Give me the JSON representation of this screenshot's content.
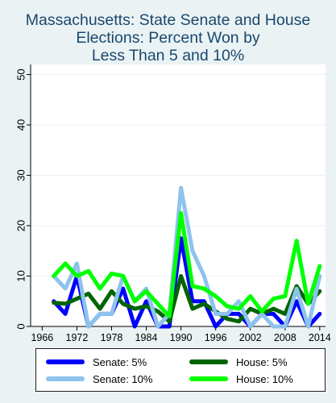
{
  "title_lines": [
    "Massachusetts: State Senate and House",
    "Elections: Percent Won by",
    "Less Than 5 and 10%"
  ],
  "chart_data": {
    "type": "line",
    "title": "Massachusetts: State Senate and House Elections: Percent Won by Less Than 5 and 10%",
    "xlabel": "",
    "ylabel": "",
    "xlim": [
      1964,
      2015
    ],
    "ylim": [
      0,
      52
    ],
    "x_ticks": [
      1966,
      1972,
      1978,
      1984,
      1990,
      1996,
      2002,
      2008,
      2014
    ],
    "y_ticks": [
      0,
      10,
      20,
      30,
      40,
      50
    ],
    "grid": "horizontal",
    "legend_position": "bottom",
    "x": [
      1968,
      1970,
      1972,
      1974,
      1976,
      1978,
      1980,
      1982,
      1984,
      1986,
      1988,
      1990,
      1992,
      1994,
      1996,
      1998,
      2000,
      2002,
      2004,
      2006,
      2008,
      2010,
      2012,
      2014
    ],
    "series": [
      {
        "name": "Senate: 5%",
        "color": "#0000ff",
        "values": [
          5,
          2.5,
          10,
          0,
          2.5,
          2.5,
          7.5,
          0,
          5,
          0,
          0,
          17.5,
          5,
          5,
          0,
          2.5,
          2.5,
          0,
          2.5,
          2.5,
          0,
          5,
          0,
          2.5
        ]
      },
      {
        "name": "House: 5%",
        "color": "#006400",
        "values": [
          4.7,
          4.5,
          5.5,
          6.5,
          3.5,
          7,
          4.5,
          3.5,
          4,
          3,
          1,
          10,
          3.5,
          4.5,
          3,
          1.5,
          1,
          3.5,
          2.5,
          3.5,
          2.5,
          8,
          4.5,
          7
        ]
      },
      {
        "name": "Senate: 10%",
        "color": "#8dc3ed",
        "values": [
          10,
          7.5,
          12.5,
          0,
          2.5,
          2.5,
          10,
          5,
          7.5,
          0,
          2.5,
          27.5,
          15,
          10,
          2.5,
          2.5,
          5,
          0,
          2.5,
          0,
          0,
          7.5,
          0,
          10
        ]
      },
      {
        "name": "House: 10%",
        "color": "#00ff00",
        "values": [
          10,
          12.5,
          10,
          11,
          7.5,
          10.5,
          10,
          5,
          7,
          4.5,
          2,
          22.5,
          8,
          7.5,
          6,
          4,
          3.5,
          6,
          3,
          5.5,
          6,
          17,
          4.5,
          12
        ]
      }
    ]
  },
  "legend": {
    "items": [
      {
        "label": "Senate: 5%",
        "color": "#0000ff"
      },
      {
        "label": "House: 5%",
        "color": "#006400"
      },
      {
        "label": "Senate: 10%",
        "color": "#8dc3ed"
      },
      {
        "label": "House: 10%",
        "color": "#00ff00"
      }
    ]
  }
}
